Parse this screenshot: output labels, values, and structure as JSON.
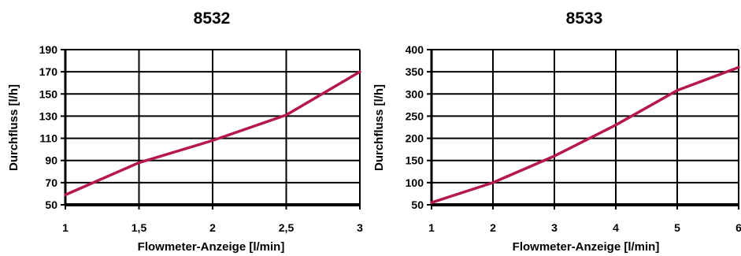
{
  "chart_data": [
    {
      "type": "line",
      "title": "8532",
      "xlabel": "Flowmeter-Anzeige [l/min]",
      "ylabel": "Durchfluss [l/h]",
      "x_ticks": [
        1,
        1.5,
        2,
        2.5,
        3
      ],
      "x_tick_labels": [
        "1",
        "1,5",
        "2",
        "2,5",
        "3"
      ],
      "y_ticks": [
        50,
        70,
        90,
        110,
        130,
        150,
        170,
        190
      ],
      "y_tick_labels": [
        "50",
        "70",
        "90",
        "110",
        "130",
        "150",
        "170",
        "190"
      ],
      "xlim": [
        1,
        3
      ],
      "ylim": [
        50,
        190
      ],
      "grid": true,
      "series": [
        {
          "x": [
            1,
            1.5,
            2,
            2.5,
            3
          ],
          "y": [
            59,
            88,
            108,
            131,
            170
          ]
        }
      ],
      "line_color": "#b5174f"
    },
    {
      "type": "line",
      "title": "8533",
      "xlabel": "Flowmeter-Anzeige [l/min]",
      "ylabel": "Durchfluss [l/h]",
      "x_ticks": [
        1,
        2,
        3,
        4,
        5,
        6
      ],
      "x_tick_labels": [
        "1",
        "2",
        "3",
        "4",
        "5",
        "6"
      ],
      "y_ticks": [
        50,
        100,
        150,
        200,
        250,
        300,
        350,
        400
      ],
      "y_tick_labels": [
        "50",
        "100",
        "150",
        "200",
        "250",
        "300",
        "350",
        "400"
      ],
      "xlim": [
        1,
        6
      ],
      "ylim": [
        50,
        400
      ],
      "grid": true,
      "series": [
        {
          "x": [
            1,
            2,
            3,
            4,
            5,
            6
          ],
          "y": [
            55,
            100,
            160,
            230,
            308,
            360
          ]
        }
      ],
      "line_color": "#b5174f"
    }
  ]
}
